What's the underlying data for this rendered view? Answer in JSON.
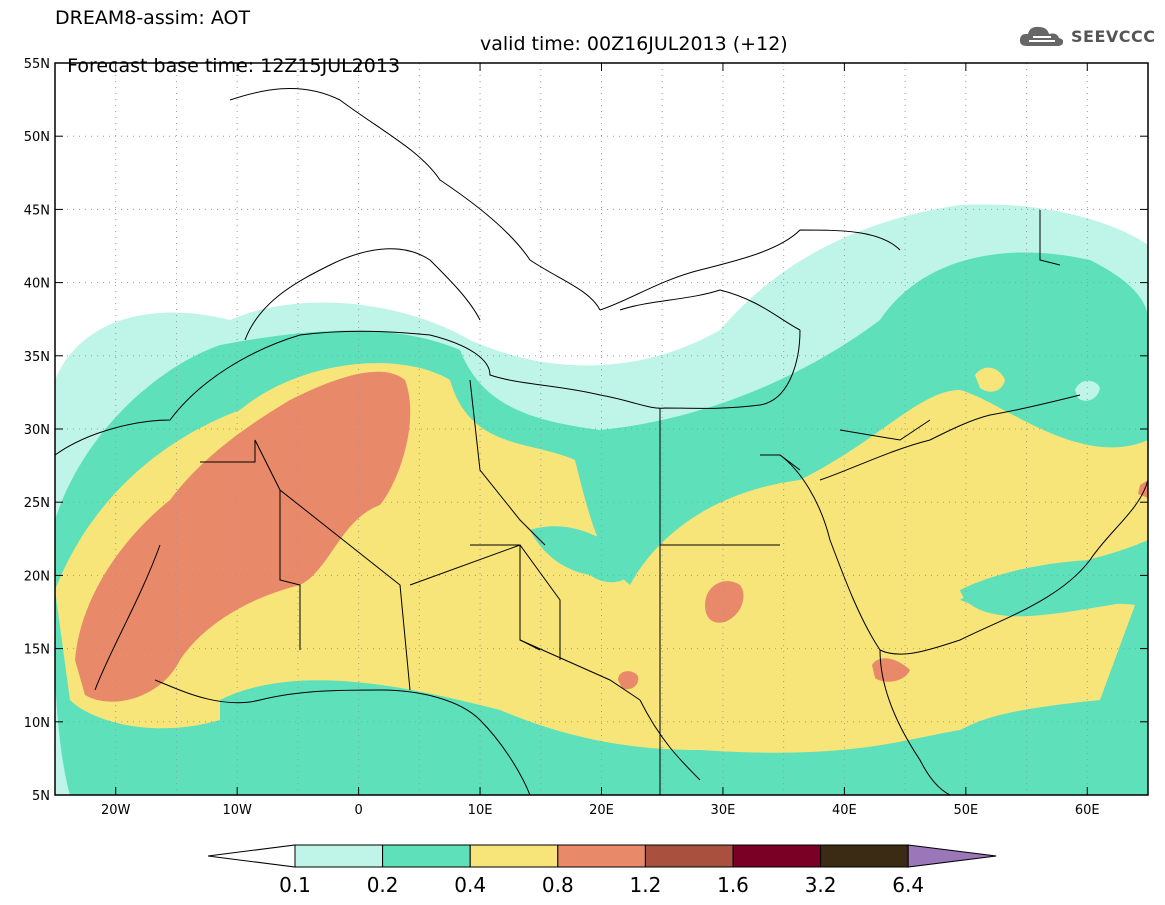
{
  "header": {
    "title_line1": "DREAM8-assim: AOT",
    "base_time": "Forecast base time: 12Z15JUL2013",
    "valid_time": "valid time: 00Z16JUL2013 (+12)"
  },
  "logo": {
    "text": "SEEVCCC",
    "icon": "cloud-icon"
  },
  "map": {
    "variable": "AOT",
    "lon_range": [
      -25,
      65
    ],
    "lat_range": [
      5,
      55
    ],
    "lat_ticks": [
      "55N",
      "50N",
      "45N",
      "40N",
      "35N",
      "30N",
      "25N",
      "20N",
      "15N",
      "10N",
      "5N"
    ],
    "lon_ticks": [
      "20W",
      "10W",
      "0",
      "10E",
      "20E",
      "30E",
      "40E",
      "50E",
      "60E"
    ],
    "grid": "dotted"
  },
  "colorbar": {
    "labels": [
      "0.1",
      "0.2",
      "0.4",
      "0.8",
      "1.2",
      "1.6",
      "3.2",
      "6.4"
    ],
    "colors": [
      "#bff5e8",
      "#5ee0bb",
      "#f7e57a",
      "#e8896a",
      "#a9503f",
      "#7a0025",
      "#3b2a14",
      "#9b76b8"
    ],
    "under_color": "#ffffff"
  },
  "colors": {
    "c01": "#bff5e8",
    "c02": "#5ee0bb",
    "c04": "#f7e57a",
    "c08": "#e8896a",
    "c12": "#a9503f"
  }
}
